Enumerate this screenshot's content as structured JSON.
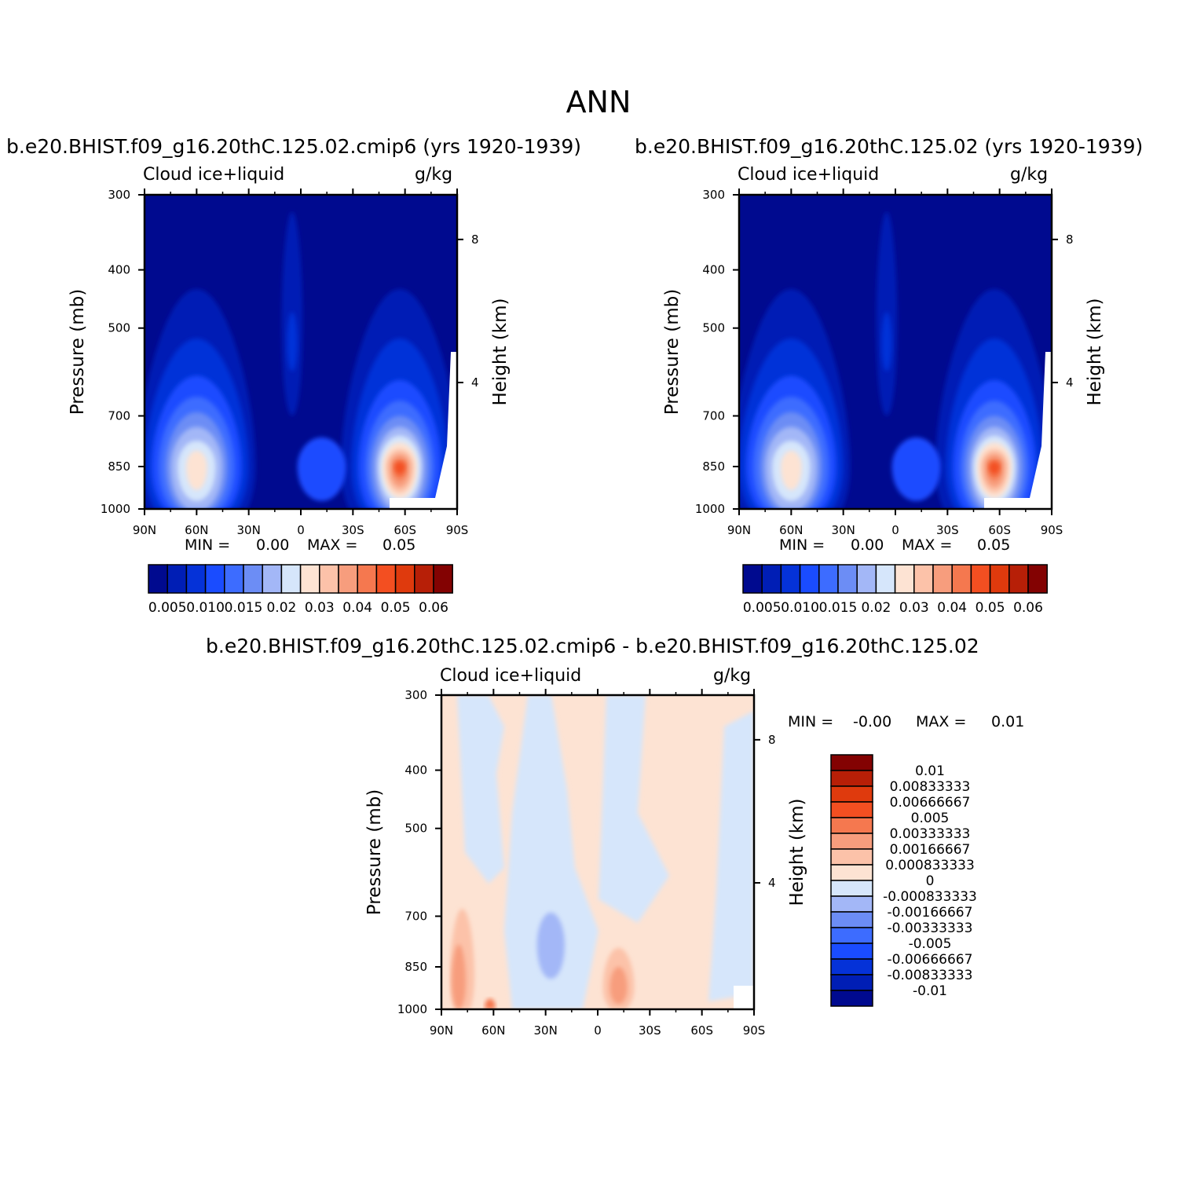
{
  "main_title": "ANN",
  "colors": {
    "abs_scale": [
      "#000a8f",
      "#001eb5",
      "#0532d8",
      "#1a4cff",
      "#3d6cff",
      "#6c8df5",
      "#a3b7f7",
      "#d6e6fb",
      "#fde3d3",
      "#fcc2a9",
      "#f79d7d",
      "#f5784f",
      "#f34f21",
      "#df3a0d",
      "#b71f07",
      "#830202"
    ],
    "diff_scale": [
      "#000a8f",
      "#001eb5",
      "#0532d8",
      "#1a4cff",
      "#3d6cff",
      "#6c8df5",
      "#a3b7f7",
      "#d6e6fb",
      "#fde3d3",
      "#fcc2a9",
      "#f79d7d",
      "#f5784f",
      "#f34f21",
      "#df3a0d",
      "#b71f07",
      "#830202"
    ]
  },
  "chart_data": [
    {
      "type": "heatmap",
      "title": "b.e20.BHIST.f09_g16.20thC.125.02.cmip6 (yrs 1920-1939)",
      "variable": "Cloud ice+liquid",
      "units": "g/kg",
      "ylabel": "Pressure (mb)",
      "ylabel_right": "Height (km)",
      "x_ticks": [
        "90N",
        "60N",
        "30N",
        "0",
        "30S",
        "60S",
        "90S"
      ],
      "y_ticks": [
        "300",
        "400",
        "500",
        "700",
        "850",
        "1000"
      ],
      "right_ticks": [
        "8",
        "4"
      ],
      "min_label": "MIN =",
      "min_value": "0.00",
      "max_label": "MAX =",
      "max_value": "0.05",
      "colorbar_labels": [
        "0.005",
        "0.010",
        "0.015",
        "0.02",
        "0.03",
        "0.04",
        "0.05",
        "0.06"
      ],
      "field": {
        "lat": [
          90,
          60,
          30,
          0,
          -30,
          -60,
          -90
        ],
        "pressure": [
          300,
          400,
          500,
          700,
          850,
          1000
        ],
        "features": [
          {
            "lat": 60,
            "pressure": 850,
            "peak": 0.035
          },
          {
            "lat": -57,
            "pressure": 850,
            "peak": 0.05
          }
        ]
      }
    },
    {
      "type": "heatmap",
      "title": "b.e20.BHIST.f09_g16.20thC.125.02 (yrs 1920-1939)",
      "variable": "Cloud ice+liquid",
      "units": "g/kg",
      "ylabel": "Pressure (mb)",
      "ylabel_right": "Height (km)",
      "x_ticks": [
        "90N",
        "60N",
        "30N",
        "0",
        "30S",
        "60S",
        "90S"
      ],
      "y_ticks": [
        "300",
        "400",
        "500",
        "700",
        "850",
        "1000"
      ],
      "right_ticks": [
        "8",
        "4"
      ],
      "min_label": "MIN =",
      "min_value": "0.00",
      "max_label": "MAX =",
      "max_value": "0.05",
      "colorbar_labels": [
        "0.005",
        "0.010",
        "0.015",
        "0.02",
        "0.03",
        "0.04",
        "0.05",
        "0.06"
      ],
      "field": {
        "lat": [
          90,
          60,
          30,
          0,
          -30,
          -60,
          -90
        ],
        "pressure": [
          300,
          400,
          500,
          700,
          850,
          1000
        ],
        "features": [
          {
            "lat": 60,
            "pressure": 850,
            "peak": 0.035
          },
          {
            "lat": -57,
            "pressure": 850,
            "peak": 0.05
          }
        ]
      }
    },
    {
      "type": "heatmap",
      "title": "b.e20.BHIST.f09_g16.20thC.125.02.cmip6 - b.e20.BHIST.f09_g16.20thC.125.02",
      "variable": "Cloud ice+liquid",
      "units": "g/kg",
      "ylabel": "Pressure (mb)",
      "ylabel_right": "Height (km)",
      "x_ticks": [
        "90N",
        "60N",
        "30N",
        "0",
        "30S",
        "60S",
        "90S"
      ],
      "y_ticks": [
        "300",
        "400",
        "500",
        "700",
        "850",
        "1000"
      ],
      "right_ticks": [
        "8",
        "4"
      ],
      "min_label": "MIN =",
      "min_value": "-0.00",
      "max_label": "MAX =",
      "max_value": "0.01",
      "colorbar_labels": [
        "0.01",
        "0.00833333",
        "0.00666667",
        "0.005",
        "0.00333333",
        "0.00166667",
        "0.000833333",
        "0",
        "-0.000833333",
        "-0.00166667",
        "-0.00333333",
        "-0.005",
        "-0.00666667",
        "-0.00833333",
        "-0.01"
      ]
    }
  ]
}
